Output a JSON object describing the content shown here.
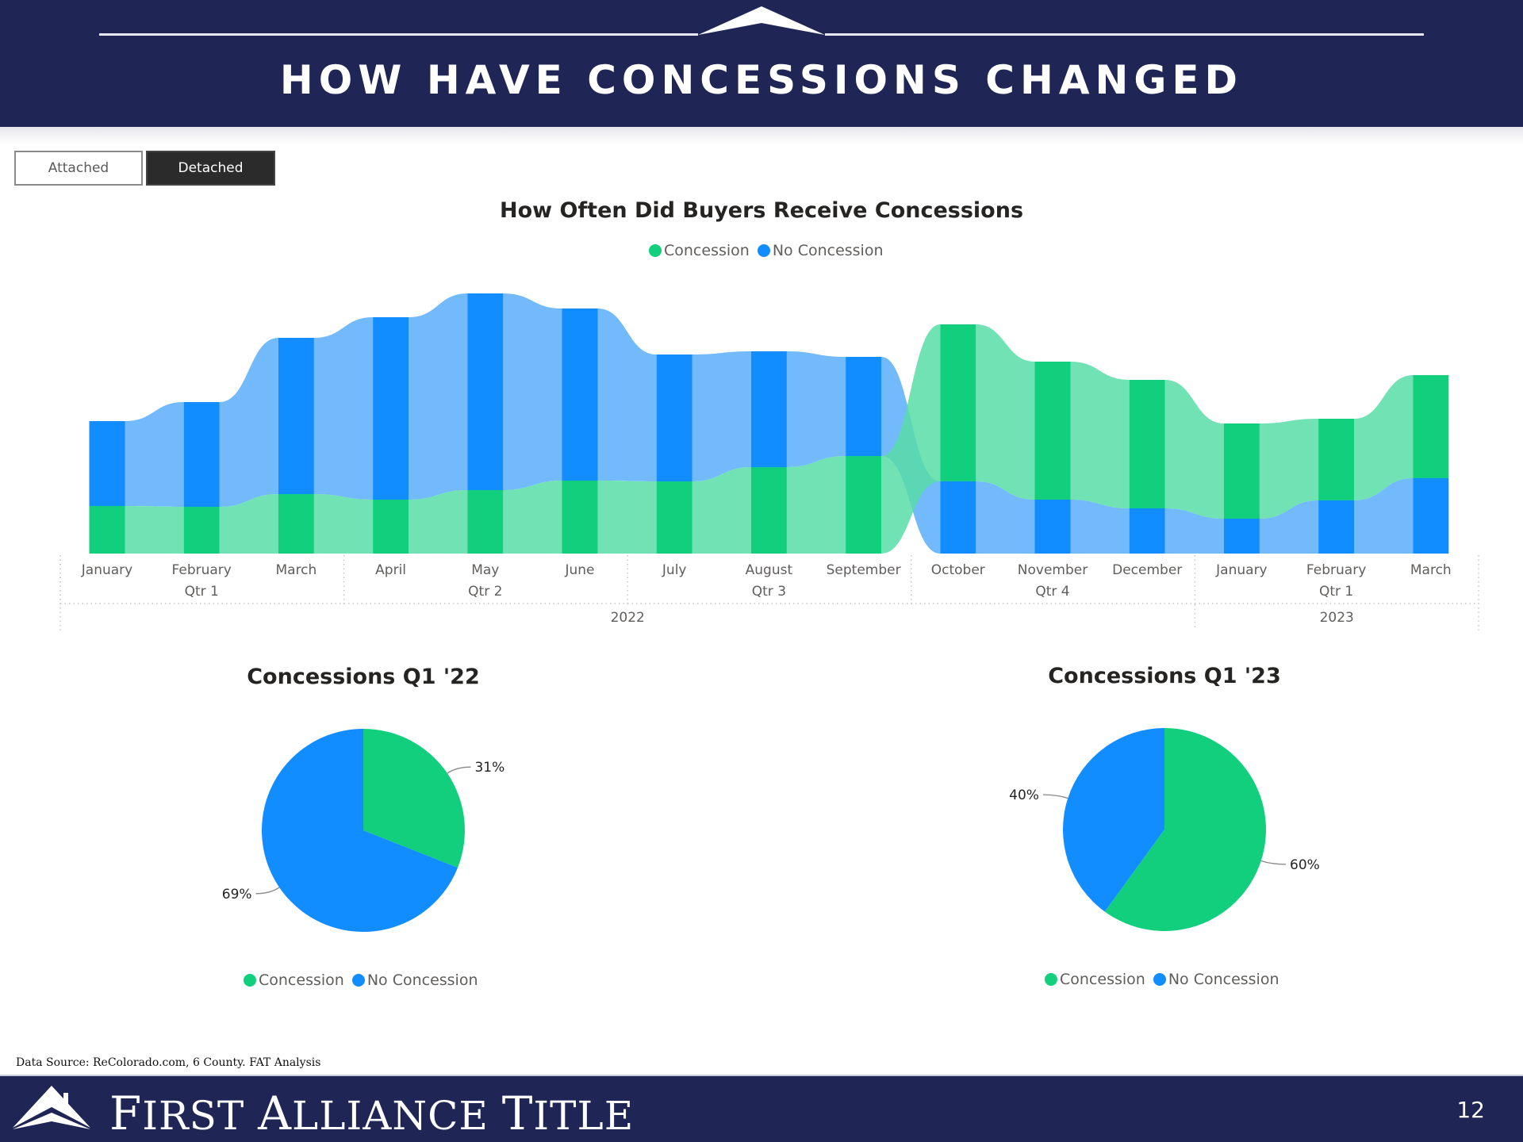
{
  "header": {
    "title": "HOW HAVE CONCESSIONS CHANGED"
  },
  "toggle": {
    "attached_label": "Attached",
    "detached_label": "Detached",
    "selected": "Detached"
  },
  "colors": {
    "concession": "#12cf7e",
    "concession_light": "#57dda6",
    "no_concession": "#118dff",
    "no_concession_light": "#5baefd",
    "header_bg": "#1f2555"
  },
  "legend": {
    "concession": "Concession",
    "no_concession": "No Concession"
  },
  "chart_data": [
    {
      "type": "ribbon",
      "title": "How Often Did Buyers Receive Concessions",
      "note": "Relative values estimated from bar heights (no value axis shown)",
      "categories": [
        "January",
        "February",
        "March",
        "April",
        "May",
        "June",
        "July",
        "August",
        "September",
        "October",
        "November",
        "December",
        "January",
        "February",
        "March"
      ],
      "quarters": [
        {
          "label": "Qtr 1",
          "year": "2022"
        },
        {
          "label": "Qtr 2",
          "year": "2022"
        },
        {
          "label": "Qtr 3",
          "year": "2022"
        },
        {
          "label": "Qtr 4",
          "year": "2022"
        },
        {
          "label": "Qtr 1",
          "year": "2023"
        }
      ],
      "years": [
        "2022",
        "2023"
      ],
      "series": [
        {
          "name": "Concession",
          "values": [
            60,
            59,
            75,
            68,
            80,
            92,
            91,
            109,
            123,
            198,
            174,
            162,
            120,
            103,
            130
          ]
        },
        {
          "name": "No Concession",
          "values": [
            107,
            132,
            197,
            230,
            248,
            217,
            160,
            146,
            125,
            91,
            68,
            57,
            44,
            67,
            95
          ]
        }
      ],
      "legend_position": "top-center",
      "grid": false
    },
    {
      "type": "pie",
      "title": "Concessions Q1 '22",
      "slices": [
        {
          "name": "Concession",
          "value": 31,
          "label": "31%"
        },
        {
          "name": "No Concession",
          "value": 69,
          "label": "69%"
        }
      ],
      "legend_position": "bottom-center"
    },
    {
      "type": "pie",
      "title": "Concessions Q1 '23",
      "slices": [
        {
          "name": "Concession",
          "value": 60,
          "label": "60%"
        },
        {
          "name": "No Concession",
          "value": 40,
          "label": "40%"
        }
      ],
      "legend_position": "bottom-center"
    }
  ],
  "footer": {
    "source": "Data Source: ReColorado.com, 6 County.  FAT Analysis",
    "brand_words": [
      {
        "first": "F",
        "rest": "IRST"
      },
      {
        "first": "A",
        "rest": "LLIANCE"
      },
      {
        "first": "T",
        "rest": "ITLE"
      }
    ],
    "brand_text": "First Alliance Title",
    "page_number": "12"
  }
}
